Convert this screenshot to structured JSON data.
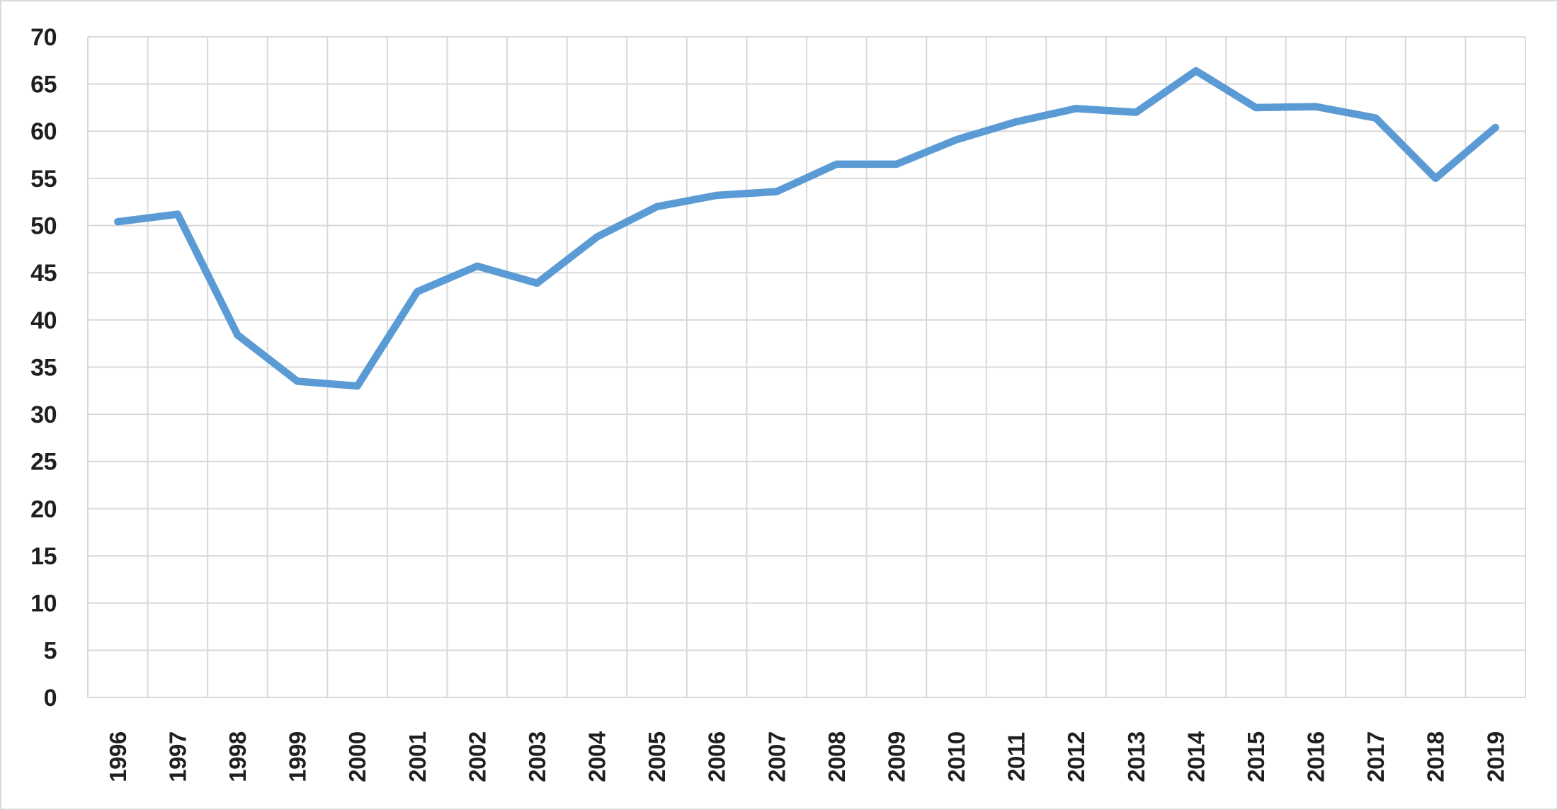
{
  "chart_data": {
    "type": "line",
    "title": "",
    "xlabel": "",
    "ylabel": "",
    "categories": [
      "1996",
      "1997",
      "1998",
      "1999",
      "2000",
      "2001",
      "2002",
      "2003",
      "2004",
      "2005",
      "2006",
      "2007",
      "2008",
      "2009",
      "2010",
      "2011",
      "2012",
      "2013",
      "2014",
      "2015",
      "2016",
      "2017",
      "2018",
      "2019"
    ],
    "series": [
      {
        "name": "",
        "values": [
          50.4,
          51.2,
          38.4,
          33.5,
          33.0,
          43.0,
          45.7,
          43.9,
          48.8,
          52.0,
          53.2,
          53.6,
          56.5,
          56.5,
          59.1,
          61.0,
          62.4,
          62.0,
          66.4,
          62.5,
          62.6,
          61.4,
          55.0,
          60.4
        ]
      }
    ],
    "ylim": [
      0,
      70
    ],
    "y_tick_step": 5,
    "y_tick_labels": [
      "0",
      "5",
      "10",
      "15",
      "20",
      "25",
      "30",
      "35",
      "40",
      "45",
      "50",
      "55",
      "60",
      "65",
      "70"
    ],
    "grid": true,
    "legend": "none",
    "x_label_rotation_deg": -90,
    "colors": {
      "line": "#5B9BD5",
      "gridline": "#D9D9D9",
      "axis_line": "#D9D9D9",
      "tick_text": "#1F1F1F",
      "background": "#FFFFFF",
      "chart_border": "#D9D9D9"
    }
  }
}
